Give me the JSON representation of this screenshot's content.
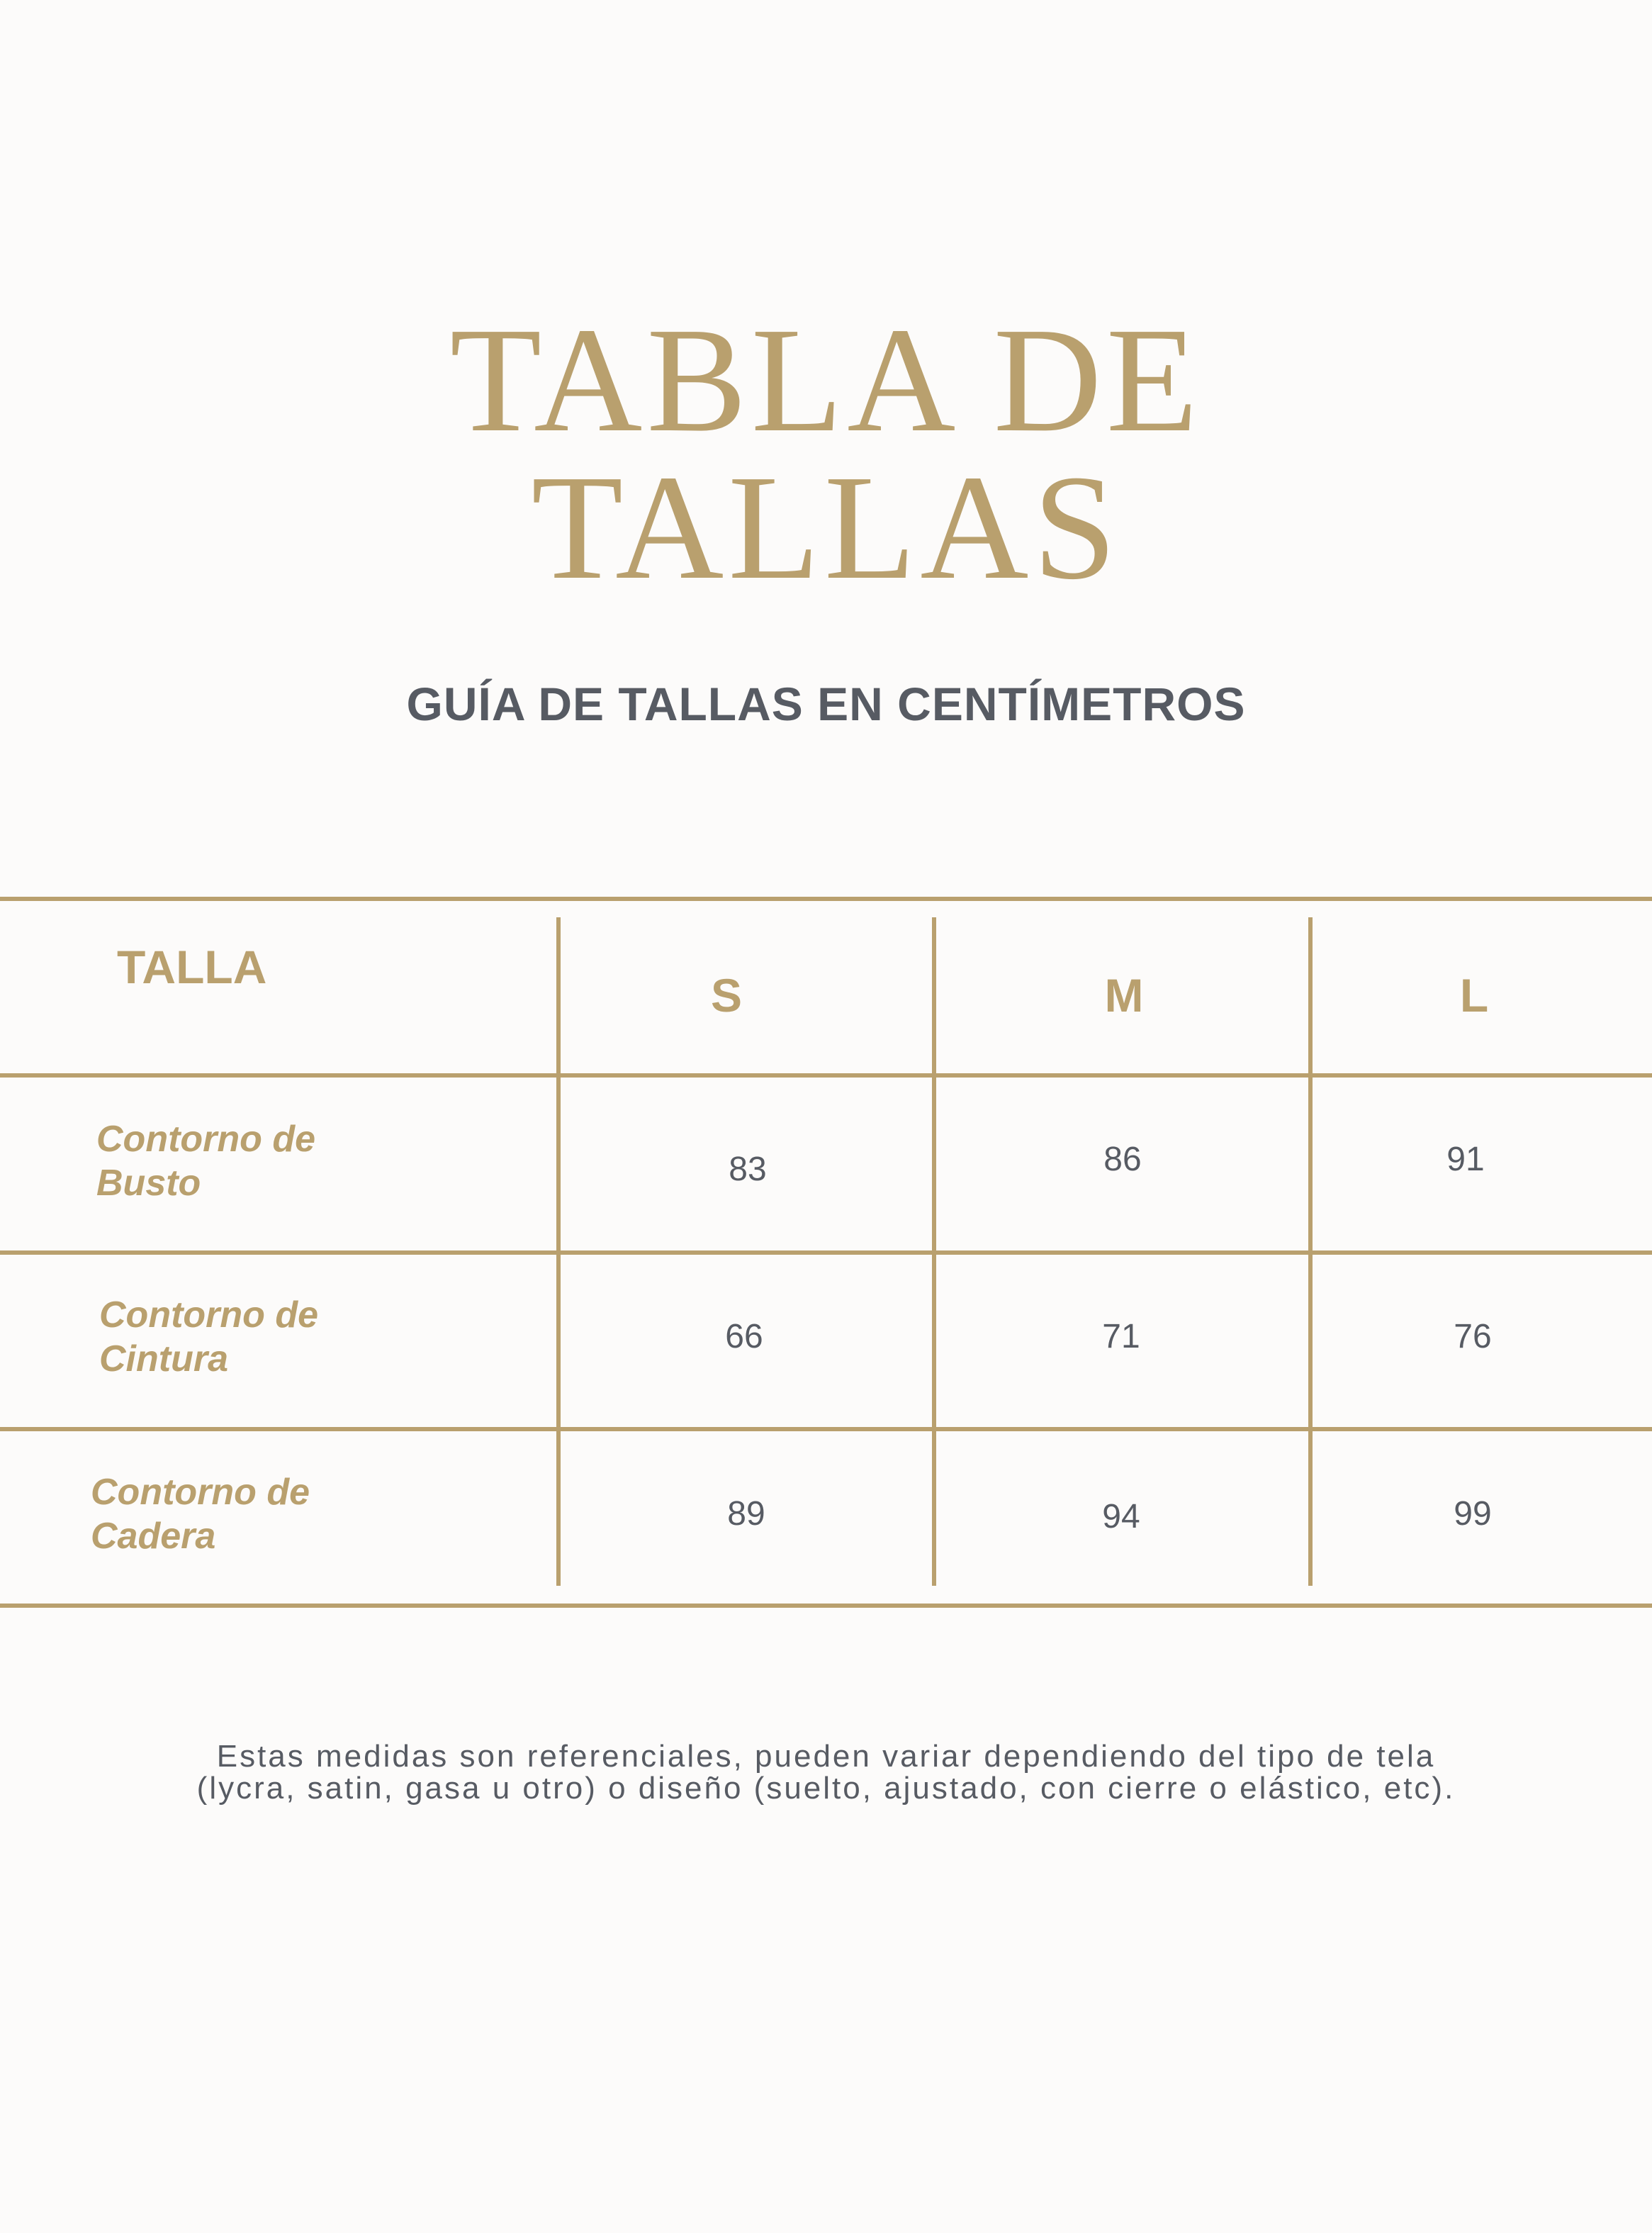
{
  "title": {
    "line1": "TABLA DE",
    "line2": "TALLAS"
  },
  "subtitle": "GUÍA DE TALLAS EN CENTÍMETROS",
  "table": {
    "header": {
      "label": "TALLA",
      "sizes": [
        "S",
        "M",
        "L"
      ]
    },
    "rows": [
      {
        "label_line1": "Contorno de",
        "label_line2": "Busto",
        "values": [
          "83",
          "86",
          "91"
        ]
      },
      {
        "label_line1": "Contorno de",
        "label_line2": "Cintura",
        "values": [
          "66",
          "71",
          "76"
        ]
      },
      {
        "label_line1": "Contorno de",
        "label_line2": "Cadera",
        "values": [
          "89",
          "94",
          "99"
        ]
      }
    ]
  },
  "footer": {
    "line1": "Estas medidas son referenciales, pueden variar dependiendo del tipo de tela",
    "line2": "(lycra, satin, gasa u otro) o diseño (suelto, ajustado, con cierre o elástico, etc)."
  },
  "colors": {
    "accent": "#b9a06e",
    "text": "#575b63",
    "background": "#fcfbfa"
  }
}
